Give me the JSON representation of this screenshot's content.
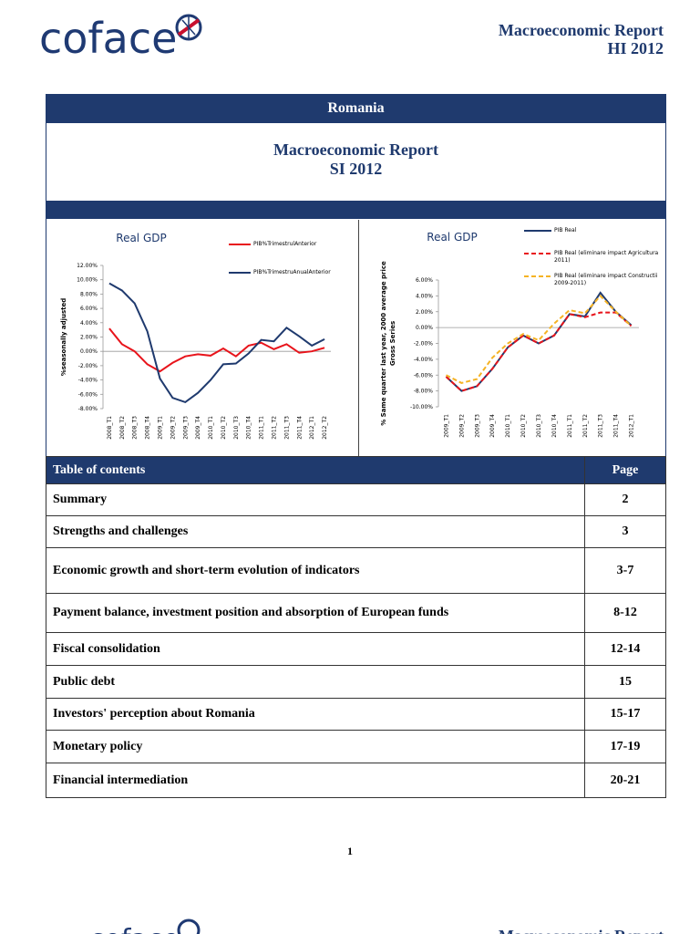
{
  "header": {
    "logo": "coface",
    "report_title": "Macroeconomic Report",
    "period": "HI 2012"
  },
  "banner": {
    "country": "Romania",
    "title": "Macroeconomic Report",
    "period": "SI 2012"
  },
  "chart_data": [
    {
      "type": "line",
      "title": "Real GDP",
      "ylabel": [
        "%seasonally adjusted"
      ],
      "categories": [
        "2008_T1",
        "2008_T2",
        "2008_T3",
        "2008_T4",
        "2009_T1",
        "2009_T2",
        "2009_T3",
        "2009_T4",
        "2010_T1",
        "2010_T2",
        "2010_T3",
        "2010_T4",
        "2011_T1",
        "2011_T2",
        "2011_T3",
        "2011_T4",
        "2012_T1",
        "2012_T2"
      ],
      "series": [
        {
          "name": "PIB%TrimestrulAnterior",
          "color": "#e8141b",
          "style": "solid",
          "values": [
            3.2,
            1.0,
            0.0,
            -1.8,
            -2.8,
            -1.6,
            -0.7,
            -0.4,
            -0.6,
            0.4,
            -0.7,
            0.8,
            1.2,
            0.3,
            1.0,
            -0.2,
            0.0,
            0.5
          ]
        },
        {
          "name": "PIB%TrimestruAnualAnterior",
          "color": "#1f3a6e",
          "style": "solid",
          "values": [
            9.5,
            8.5,
            6.7,
            2.8,
            -3.8,
            -6.5,
            -7.1,
            -5.8,
            -4.0,
            -1.8,
            -1.7,
            -0.3,
            1.6,
            1.4,
            3.3,
            2.1,
            0.8,
            1.7
          ]
        }
      ],
      "ylim": [
        -8,
        12
      ],
      "yticks": [
        {
          "value": 12,
          "label": "12.00%"
        },
        {
          "value": 10,
          "label": "10.00%"
        },
        {
          "value": 8,
          "label": "8.00%"
        },
        {
          "value": 6,
          "label": "6.00%"
        },
        {
          "value": 4,
          "label": "4.00%"
        },
        {
          "value": 2,
          "label": "2.00%"
        },
        {
          "value": 0,
          "label": "0.00%"
        },
        {
          "value": -2,
          "label": "-2.00%"
        },
        {
          "value": -4,
          "label": "-4.00%"
        },
        {
          "value": -6,
          "label": "-6.00%"
        },
        {
          "value": -8,
          "label": "-8.00%"
        }
      ],
      "grid": false
    },
    {
      "type": "line",
      "title": "Real GDP",
      "ylabel": [
        "% Same quarter last year, 2000 average price",
        "Gross Series"
      ],
      "categories": [
        "2009_T1",
        "2009_T2",
        "2009_T3",
        "2009_T4",
        "2010_T1",
        "2010_T2",
        "2010_T3",
        "2010_T4",
        "2011_T1",
        "2011_T2",
        "2011_T3",
        "2011_T4",
        "2012_T1"
      ],
      "series": [
        {
          "name": "PIB Real",
          "color": "#1f3a6e",
          "style": "solid",
          "values": [
            -6.2,
            -8.0,
            -7.4,
            -5.2,
            -2.5,
            -1.0,
            -2.0,
            -1.0,
            1.7,
            1.4,
            4.4,
            2.0,
            0.3
          ]
        },
        {
          "name": "PIB Real (eliminare impact Agricultura 2011)",
          "color": "#e8141b",
          "style": "dashed",
          "values": [
            -6.2,
            -8.0,
            -7.4,
            -5.2,
            -2.5,
            -1.0,
            -2.0,
            -1.0,
            1.7,
            1.3,
            1.9,
            1.9,
            0.2
          ]
        },
        {
          "name": "PIB Real (eliminare impact Constructii 2009-2011)",
          "color": "#f5b324",
          "style": "dashed",
          "values": [
            -6.0,
            -7.0,
            -6.5,
            -3.8,
            -2.0,
            -0.8,
            -1.6,
            0.5,
            2.2,
            1.8,
            4.0,
            2.0,
            0.2
          ]
        }
      ],
      "ylim": [
        -10,
        6
      ],
      "yticks": [
        {
          "value": 6,
          "label": "6.00%"
        },
        {
          "value": 4,
          "label": "4.00%"
        },
        {
          "value": 2,
          "label": "2.00%"
        },
        {
          "value": 0,
          "label": "0.00%"
        },
        {
          "value": -2,
          "label": "-2.00%"
        },
        {
          "value": -4,
          "label": "-4.00%"
        },
        {
          "value": -6,
          "label": "-6.00%"
        },
        {
          "value": -8,
          "label": "-8.00%"
        },
        {
          "value": -10,
          "label": "-10.00%"
        }
      ],
      "grid": false
    }
  ],
  "toc": {
    "header": [
      "Table of contents",
      "Page"
    ],
    "rows": [
      [
        "Summary",
        "2"
      ],
      [
        "Strengths and challenges",
        "3"
      ],
      [
        "Economic growth and short-term evolution of indicators",
        "3-7"
      ],
      [
        "Payment balance, investment position and absorption of European funds",
        "8-12"
      ],
      [
        "Fiscal consolidation",
        "12-14"
      ],
      [
        "Public debt",
        "15"
      ],
      [
        "Investors' perception about Romania",
        "15-17"
      ],
      [
        "Monetary policy",
        "17-19"
      ],
      [
        "Financial intermediation",
        "20-21"
      ]
    ]
  },
  "page_number": "1",
  "footer": {
    "logo": "coface",
    "report_title": "Macroeconomic Report"
  }
}
